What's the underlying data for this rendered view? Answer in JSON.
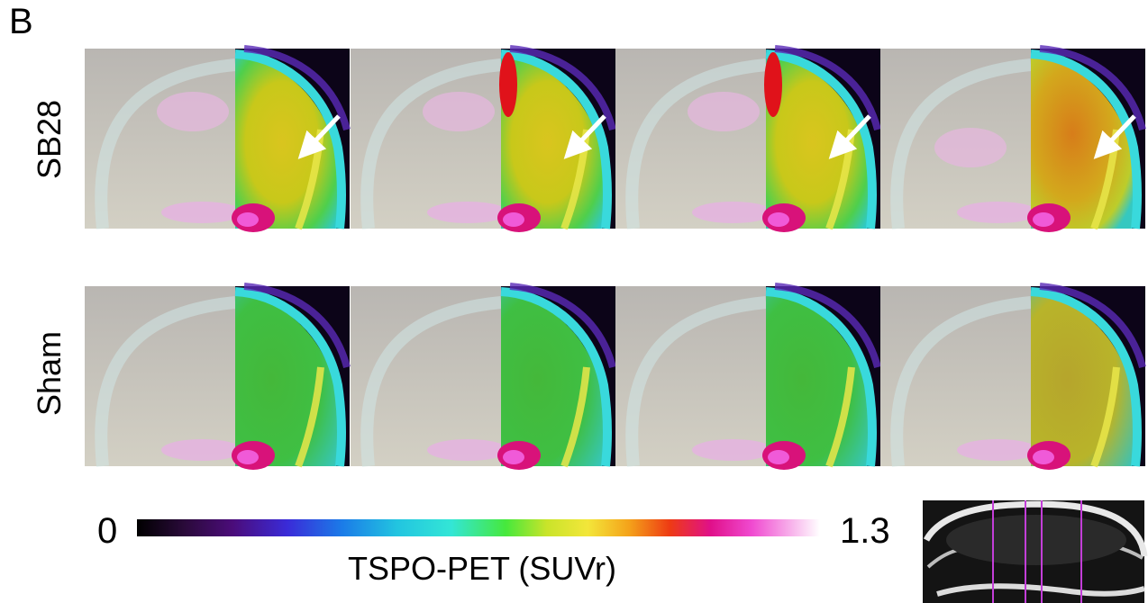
{
  "panel_label": "B",
  "rows": [
    {
      "label": "SB28",
      "arrows": true
    },
    {
      "label": "Sham",
      "arrows": false
    }
  ],
  "panels_per_row": 4,
  "colorbar": {
    "min_label": "0",
    "max_label": "1.3",
    "title": "TSPO-PET (SUVr)",
    "colors": [
      "#000000",
      "#2a0a3a",
      "#4b0c7a",
      "#3a2bd8",
      "#1b7be8",
      "#22c4e0",
      "#33e6d6",
      "#46e83c",
      "#c9e42a",
      "#f3e63a",
      "#f4a31a",
      "#ee3b14",
      "#e0108a",
      "#f04ad0",
      "#f8b6ec",
      "#ffffff"
    ]
  },
  "inset": {
    "slice_line_color": "#c33ed8",
    "slice_lines": 4
  }
}
